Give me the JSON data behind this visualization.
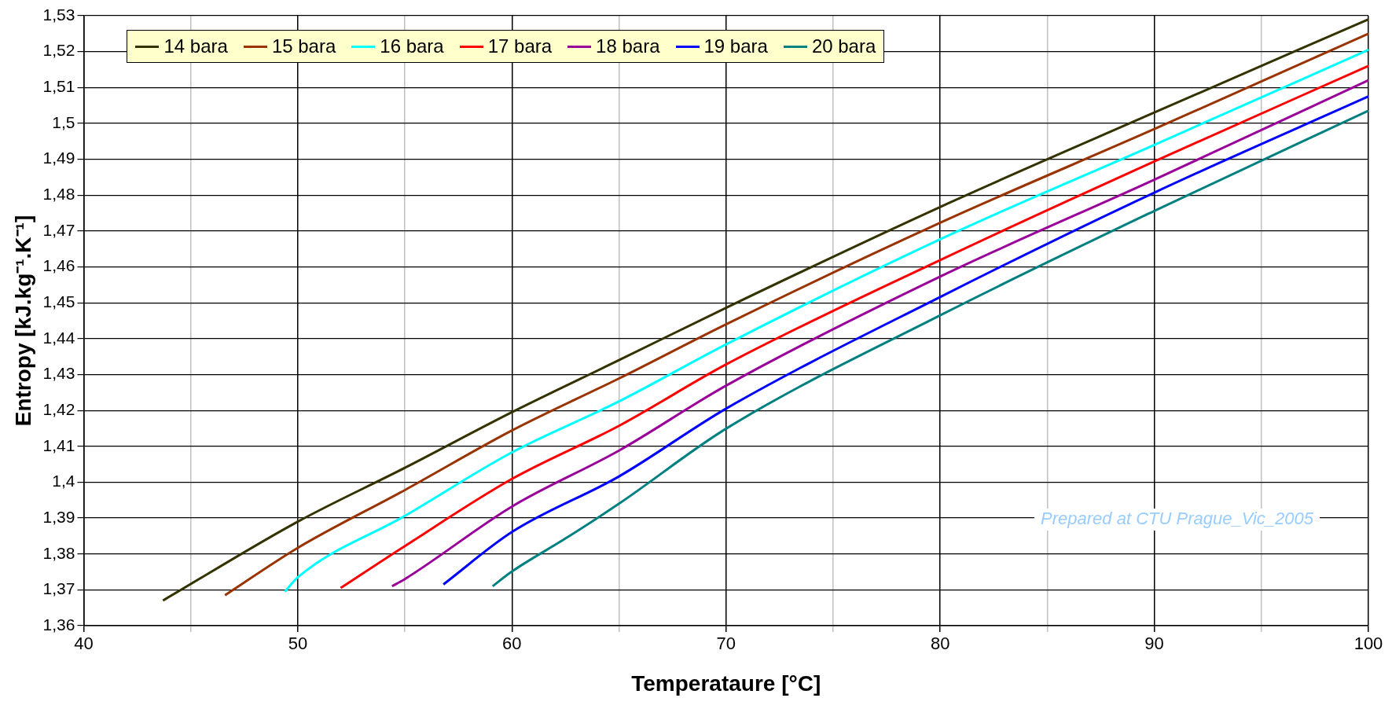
{
  "chart_data": {
    "type": "line",
    "xlabel": "Temperataure [°C]",
    "ylabel": "Entropy [kJ.kg⁻¹.K⁻¹]",
    "annotations": [
      "Prepared at CTU Prague_Vic_2005"
    ],
    "xlim": [
      40,
      100
    ],
    "xticks": [
      40,
      {
        "value": 45,
        "label": null
      },
      50,
      {
        "value": 55,
        "label": null
      },
      60,
      {
        "value": 65,
        "label": null
      },
      70,
      {
        "value": 75,
        "label": null
      },
      80,
      {
        "value": 85,
        "label": null
      },
      90,
      {
        "value": 95,
        "label": null
      },
      100
    ],
    "ylim": [
      1.36,
      1.53
    ],
    "yticks": [
      {
        "value": 1.36,
        "label": "1,36"
      },
      {
        "value": 1.37,
        "label": "1,37"
      },
      {
        "value": 1.38,
        "label": "1,38"
      },
      {
        "value": 1.39,
        "label": "1,39"
      },
      {
        "value": 1.4,
        "label": "1,4"
      },
      {
        "value": 1.41,
        "label": "1,41"
      },
      {
        "value": 1.42,
        "label": "1,42"
      },
      {
        "value": 1.43,
        "label": "1,43"
      },
      {
        "value": 1.44,
        "label": "1,44"
      },
      {
        "value": 1.45,
        "label": "1,45"
      },
      {
        "value": 1.46,
        "label": "1,46"
      },
      {
        "value": 1.47,
        "label": "1,47"
      },
      {
        "value": 1.48,
        "label": "1,48"
      },
      {
        "value": 1.49,
        "label": "1,49"
      },
      {
        "value": 1.5,
        "label": "1,5"
      },
      {
        "value": 1.51,
        "label": "1,51"
      },
      {
        "value": 1.52,
        "label": "1,52"
      },
      {
        "value": 1.53,
        "label": "1,53"
      }
    ],
    "grid": true,
    "legend": "top left",
    "marker": "none",
    "line_style": "solid",
    "series": [
      {
        "name": "14 bara",
        "color": "#333300",
        "x": [
          43.7,
          50,
          55,
          60,
          65,
          70,
          80,
          90,
          100
        ],
        "values": [
          1.367,
          1.389,
          1.404,
          1.4195,
          1.434,
          1.4486,
          1.4767,
          1.503,
          1.529
        ]
      },
      {
        "name": "15 bara",
        "color": "#993300",
        "x": [
          46.6,
          50,
          55,
          60,
          65,
          70,
          80,
          90,
          100
        ],
        "values": [
          1.3685,
          1.3817,
          1.3978,
          1.4144,
          1.4289,
          1.444,
          1.4723,
          1.4984,
          1.525
        ]
      },
      {
        "name": "16 bara",
        "color": "#00ffff",
        "x": [
          49.4,
          50,
          55,
          60,
          65,
          70,
          80,
          90,
          100
        ],
        "values": [
          1.3695,
          1.3735,
          1.3906,
          1.4083,
          1.4225,
          1.4384,
          1.4677,
          1.494,
          1.5205
        ]
      },
      {
        "name": "17 bara",
        "color": "#ff0000",
        "x": [
          52,
          55,
          60,
          65,
          70,
          80,
          90,
          100
        ],
        "values": [
          1.3705,
          1.3822,
          1.4009,
          1.4157,
          1.4328,
          1.4619,
          1.4894,
          1.516
        ]
      },
      {
        "name": "18 bara",
        "color": "#990099",
        "x": [
          54.4,
          55,
          60,
          65,
          70,
          80,
          90,
          100
        ],
        "values": [
          1.371,
          1.373,
          1.3932,
          1.4088,
          1.4269,
          1.4573,
          1.4843,
          1.512
        ]
      },
      {
        "name": "19 bara",
        "color": "#0000ff",
        "x": [
          56.8,
          60,
          65,
          70,
          80,
          90,
          100
        ],
        "values": [
          1.3715,
          1.3861,
          1.4016,
          1.4205,
          1.4516,
          1.4807,
          1.5075
        ]
      },
      {
        "name": "20 bara",
        "color": "#008080",
        "x": [
          59.1,
          60,
          62.5,
          65,
          70,
          80,
          90,
          100
        ],
        "values": [
          1.371,
          1.3751,
          1.3843,
          1.394,
          1.4149,
          1.4465,
          1.4756,
          1.5035
        ]
      }
    ]
  }
}
